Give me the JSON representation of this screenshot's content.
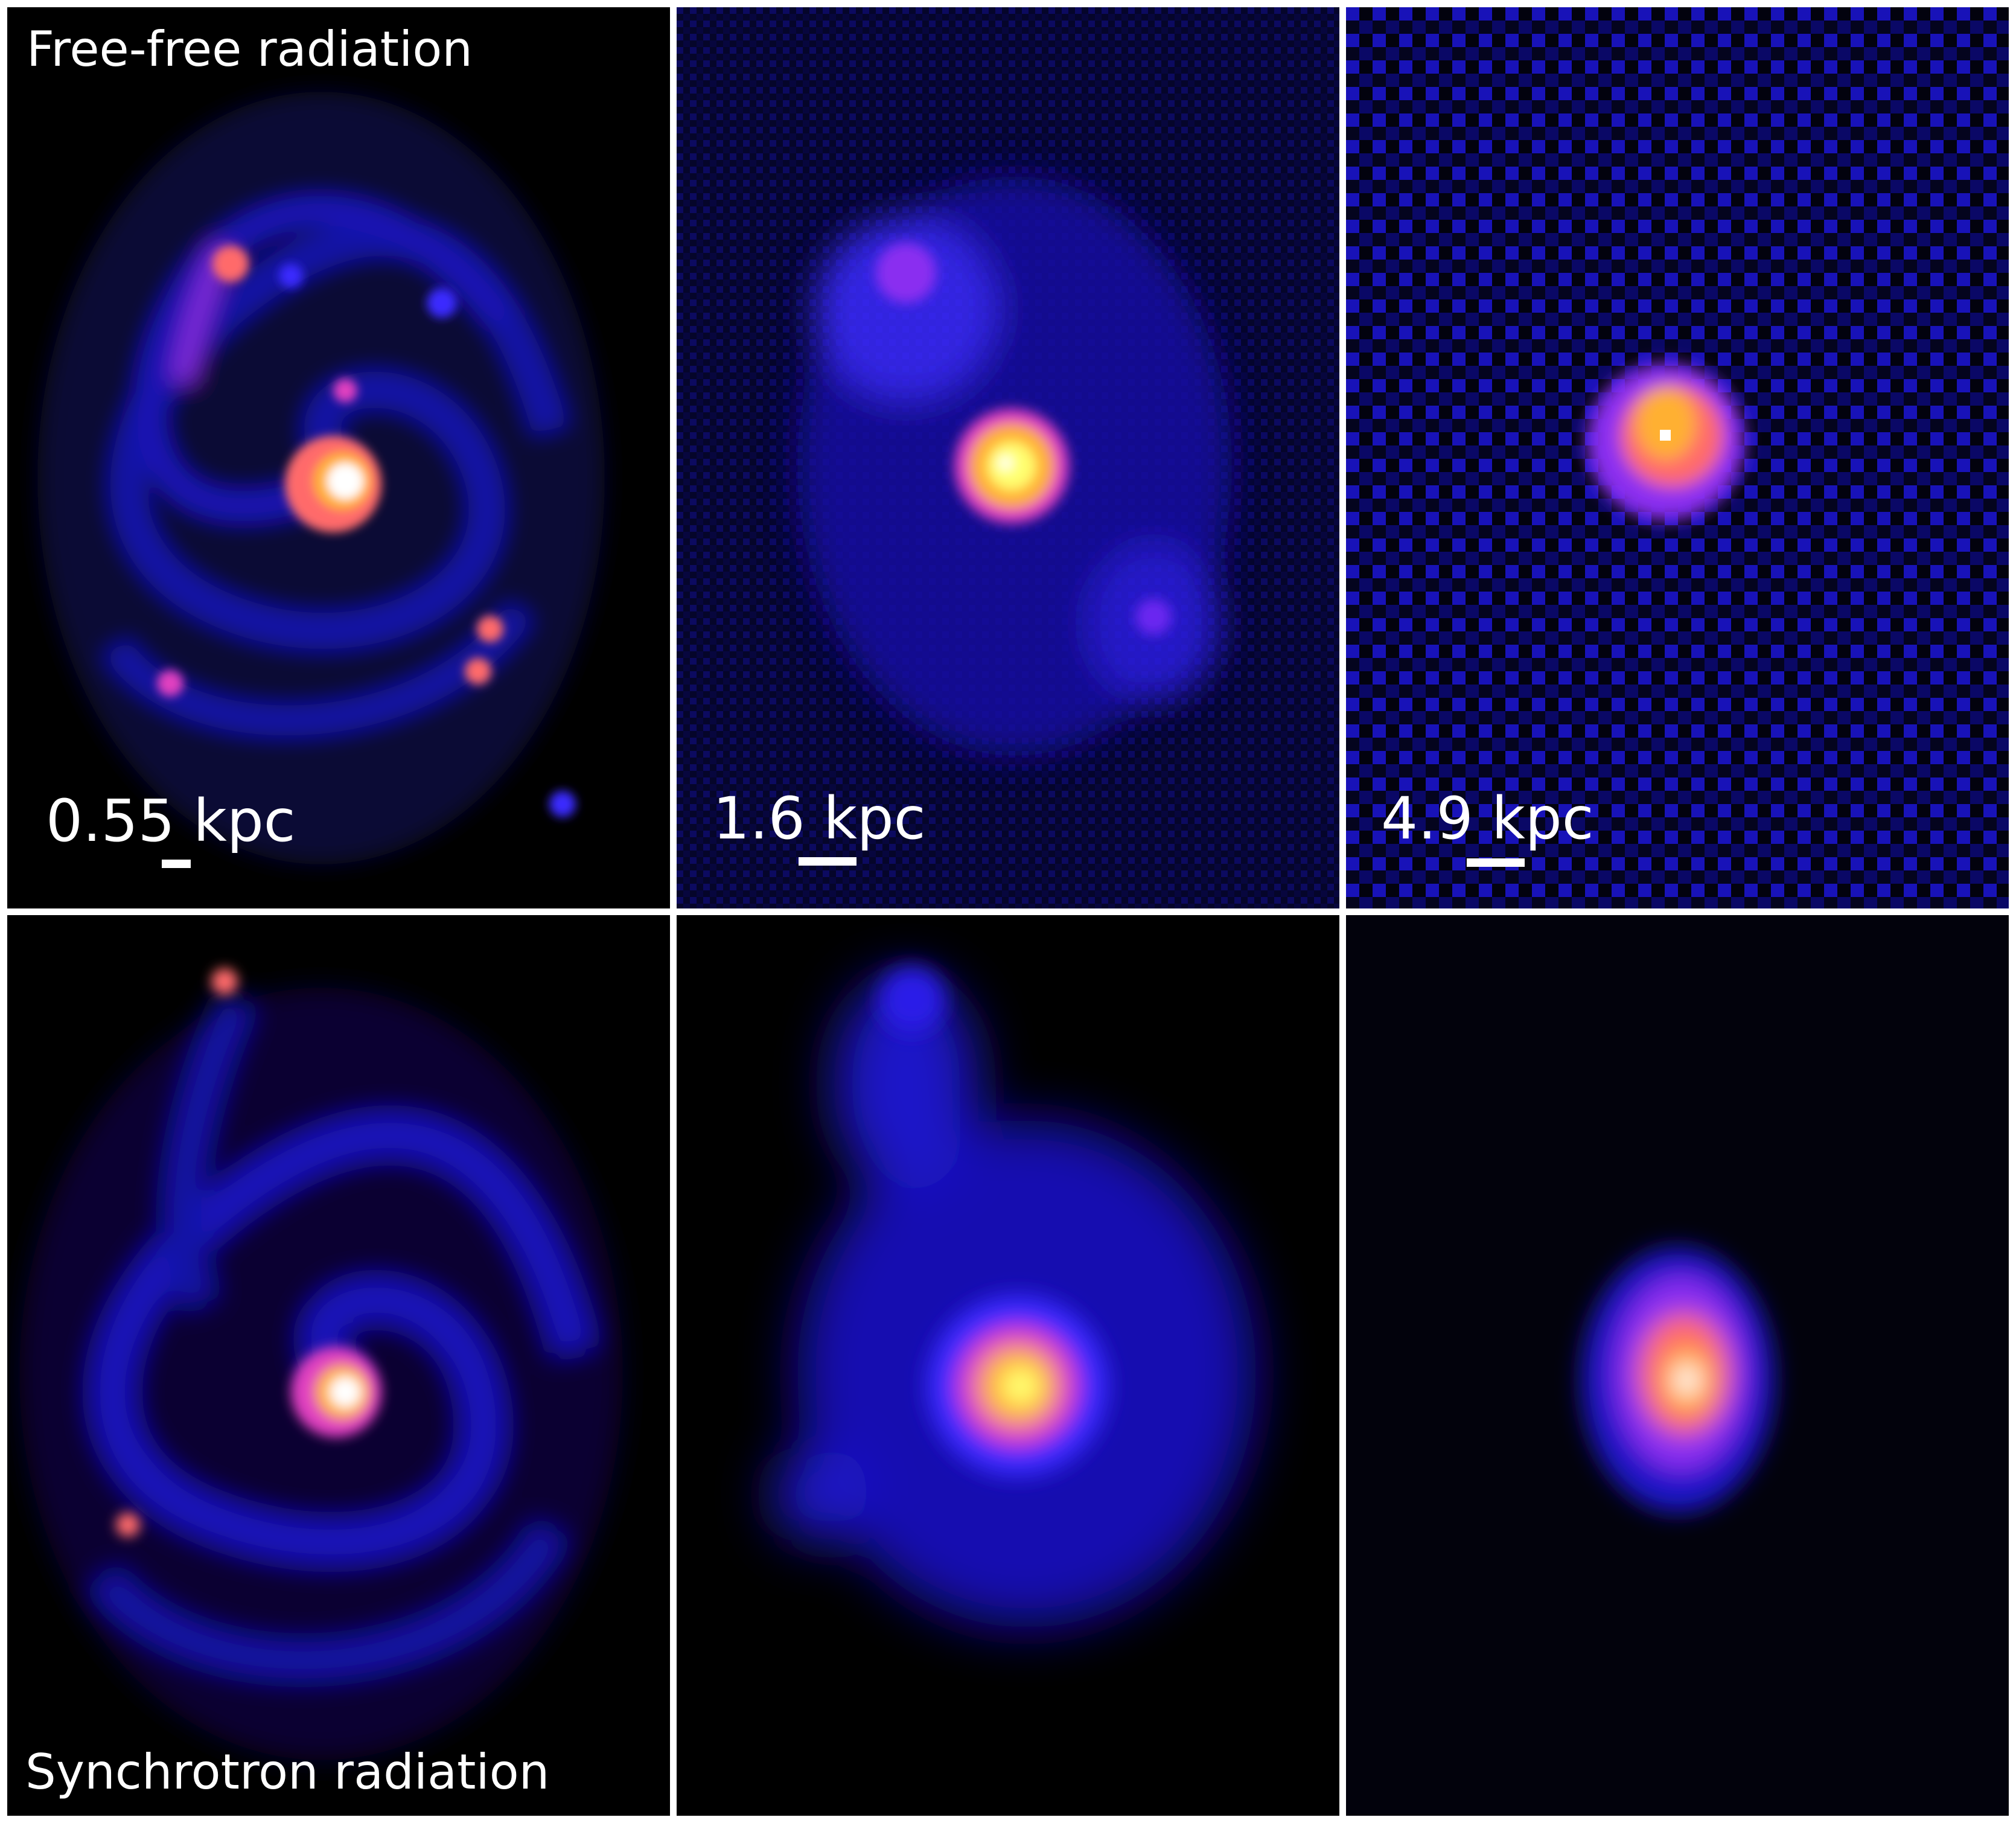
{
  "labels": {
    "top_title": "Free-free radiation",
    "bottom_title": "Synchrotron radiation"
  },
  "scale_bars": [
    {
      "text": "0.55 kpc"
    },
    {
      "text": "1.6 kpc"
    },
    {
      "text": "4.9 kpc"
    }
  ],
  "colormap": [
    "#000000",
    "#0a0a4a",
    "#1a14c8",
    "#3a2aff",
    "#8a2ef0",
    "#e040c0",
    "#ff6a6a",
    "#ffb030",
    "#ffff70",
    "#ffffff"
  ]
}
